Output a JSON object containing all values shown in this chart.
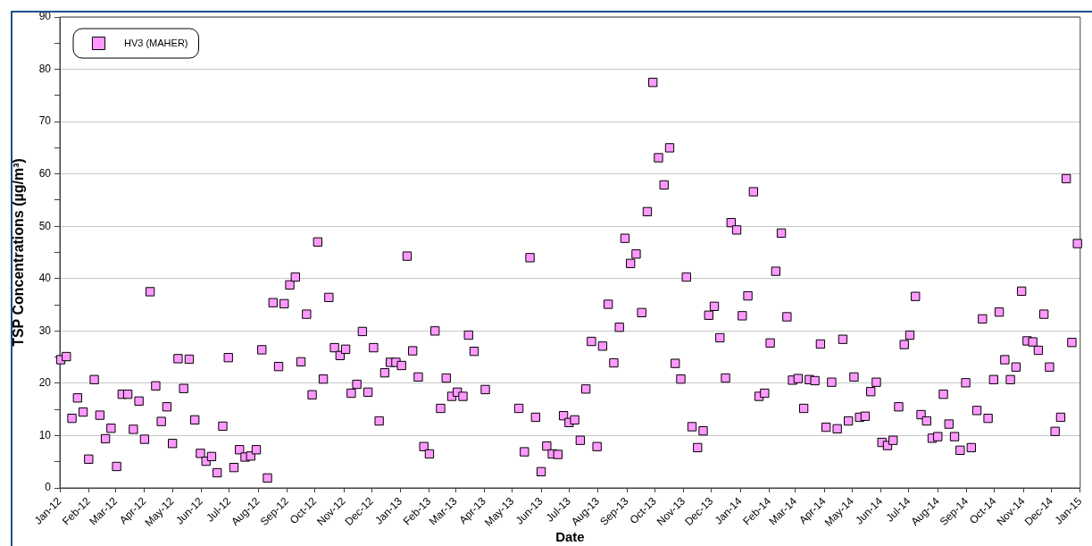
{
  "chart_data": {
    "type": "scatter",
    "xlabel": "Date",
    "ylabel": "TSP Concentrations (µg/m³)",
    "x": [
      "2012-01-02",
      "2012-01-08",
      "2012-01-14",
      "2012-01-20",
      "2012-01-26",
      "2012-02-01",
      "2012-02-07",
      "2012-02-13",
      "2012-02-19",
      "2012-02-25",
      "2012-03-02",
      "2012-03-08",
      "2012-03-14",
      "2012-03-20",
      "2012-03-26",
      "2012-04-01",
      "2012-04-07",
      "2012-04-13",
      "2012-04-19",
      "2012-04-25",
      "2012-05-01",
      "2012-05-07",
      "2012-05-13",
      "2012-05-19",
      "2012-05-25",
      "2012-05-31",
      "2012-06-06",
      "2012-06-12",
      "2012-06-18",
      "2012-06-24",
      "2012-06-30",
      "2012-07-06",
      "2012-07-12",
      "2012-07-18",
      "2012-07-24",
      "2012-07-30",
      "2012-08-05",
      "2012-08-11",
      "2012-08-17",
      "2012-08-23",
      "2012-08-29",
      "2012-09-04",
      "2012-09-10",
      "2012-09-16",
      "2012-09-22",
      "2012-09-28",
      "2012-10-04",
      "2012-10-10",
      "2012-10-16",
      "2012-10-22",
      "2012-10-28",
      "2012-11-03",
      "2012-11-09",
      "2012-11-15",
      "2012-11-21",
      "2012-11-27",
      "2012-12-03",
      "2012-12-09",
      "2012-12-15",
      "2012-12-21",
      "2012-12-27",
      "2013-01-02",
      "2013-01-08",
      "2013-01-14",
      "2013-01-20",
      "2013-01-26",
      "2013-02-01",
      "2013-02-07",
      "2013-02-13",
      "2013-02-19",
      "2013-02-25",
      "2013-03-03",
      "2013-03-09",
      "2013-03-15",
      "2013-03-21",
      "2013-04-02",
      "2013-05-08",
      "2013-05-14",
      "2013-05-20",
      "2013-05-26",
      "2013-06-01",
      "2013-06-07",
      "2013-06-13",
      "2013-06-19",
      "2013-06-25",
      "2013-07-01",
      "2013-07-07",
      "2013-07-13",
      "2013-07-19",
      "2013-07-25",
      "2013-07-31",
      "2013-08-06",
      "2013-08-12",
      "2013-08-18",
      "2013-08-24",
      "2013-08-30",
      "2013-09-05",
      "2013-09-11",
      "2013-09-17",
      "2013-09-23",
      "2013-09-29",
      "2013-10-05",
      "2013-10-11",
      "2013-10-17",
      "2013-10-23",
      "2013-10-29",
      "2013-11-04",
      "2013-11-10",
      "2013-11-16",
      "2013-11-22",
      "2013-11-28",
      "2013-12-04",
      "2013-12-10",
      "2013-12-16",
      "2013-12-22",
      "2013-12-28",
      "2014-01-03",
      "2014-01-09",
      "2014-01-15",
      "2014-01-21",
      "2014-01-27",
      "2014-02-02",
      "2014-02-08",
      "2014-02-14",
      "2014-02-20",
      "2014-02-26",
      "2014-03-04",
      "2014-03-10",
      "2014-03-16",
      "2014-03-22",
      "2014-03-28",
      "2014-04-03",
      "2014-04-09",
      "2014-04-15",
      "2014-04-21",
      "2014-04-27",
      "2014-05-03",
      "2014-05-09",
      "2014-05-15",
      "2014-05-21",
      "2014-05-27",
      "2014-06-02",
      "2014-06-08",
      "2014-06-14",
      "2014-06-20",
      "2014-06-26",
      "2014-07-02",
      "2014-07-08",
      "2014-07-14",
      "2014-07-20",
      "2014-07-26",
      "2014-08-01",
      "2014-08-07",
      "2014-08-13",
      "2014-08-19",
      "2014-08-25",
      "2014-08-31",
      "2014-09-06",
      "2014-09-12",
      "2014-09-18",
      "2014-09-24",
      "2014-09-30",
      "2014-10-06",
      "2014-10-12",
      "2014-10-18",
      "2014-10-24",
      "2014-10-30",
      "2014-11-05",
      "2014-11-11",
      "2014-11-17",
      "2014-11-23",
      "2014-11-29",
      "2014-12-05",
      "2014-12-11",
      "2014-12-17",
      "2014-12-23",
      "2014-12-29"
    ],
    "series": [
      {
        "name": "HV3 (MAHER)",
        "color": "#ff99ff",
        "values": [
          24.5,
          25.1,
          13.3,
          17.2,
          14.5,
          5.5,
          20.7,
          13.9,
          9.4,
          11.4,
          4.1,
          17.9,
          17.9,
          11.2,
          16.6,
          9.3,
          37.5,
          19.5,
          12.7,
          15.5,
          8.5,
          24.7,
          19.0,
          24.6,
          13.0,
          6.6,
          5.1,
          6.0,
          2.9,
          11.8,
          24.9,
          3.9,
          7.3,
          5.9,
          6.1,
          7.3,
          26.4,
          1.9,
          35.4,
          23.2,
          35.2,
          38.8,
          40.3,
          24.1,
          33.2,
          17.8,
          47.0,
          20.8,
          36.4,
          26.8,
          25.3,
          26.5,
          18.1,
          19.8,
          29.9,
          18.3,
          26.8,
          12.8,
          22.0,
          24.0,
          24.0,
          23.4,
          44.3,
          26.2,
          21.2,
          7.9,
          6.5,
          30.0,
          15.2,
          21.0,
          17.5,
          18.3,
          17.5,
          29.2,
          26.1,
          18.8,
          15.2,
          6.9,
          44.0,
          13.5,
          3.1,
          8.0,
          6.5,
          6.4,
          13.8,
          12.5,
          13.0,
          9.1,
          18.9,
          28.0,
          7.9,
          27.1,
          35.1,
          23.9,
          30.7,
          47.7,
          42.9,
          44.7,
          33.5,
          52.8,
          77.5,
          63.1,
          57.9,
          65.0,
          23.8,
          20.8,
          40.3,
          11.7,
          7.7,
          10.9,
          33.0,
          34.7,
          28.7,
          21.0,
          50.7,
          49.3,
          32.9,
          36.7,
          56.6,
          17.5,
          18.1,
          27.7,
          41.4,
          48.7,
          32.7,
          20.6,
          20.9,
          15.2,
          20.7,
          20.5,
          27.5,
          11.6,
          20.2,
          11.3,
          28.4,
          12.8,
          21.2,
          13.5,
          13.7,
          18.4,
          20.2,
          8.7,
          8.1,
          9.1,
          15.5,
          27.4,
          29.2,
          36.6,
          14.0,
          12.8,
          9.5,
          9.8,
          17.9,
          12.2,
          9.8,
          7.2,
          20.1,
          7.7,
          14.8,
          32.3,
          13.3,
          20.7,
          33.6,
          24.5,
          20.7,
          23.1,
          37.6,
          28.1,
          27.9,
          26.3,
          33.2,
          23.1,
          10.8,
          13.5,
          59.1,
          27.8,
          46.7
        ]
      }
    ],
    "xlim": [
      "2012-01-01",
      "2015-01-01"
    ],
    "xticks": [
      {
        "value": "2012-01",
        "label": "Jan-12"
      },
      {
        "value": "2012-02",
        "label": "Feb-12"
      },
      {
        "value": "2012-03",
        "label": "Mar-12"
      },
      {
        "value": "2012-04",
        "label": "Apr-12"
      },
      {
        "value": "2012-05",
        "label": "May-12"
      },
      {
        "value": "2012-06",
        "label": "Jun-12"
      },
      {
        "value": "2012-07",
        "label": "Jul-12"
      },
      {
        "value": "2012-08",
        "label": "Aug-12"
      },
      {
        "value": "2012-09",
        "label": "Sep-12"
      },
      {
        "value": "2012-10",
        "label": "Oct-12"
      },
      {
        "value": "2012-11",
        "label": "Nov-12"
      },
      {
        "value": "2012-12",
        "label": "Dec-12"
      },
      {
        "value": "2013-01",
        "label": "Jan-13"
      },
      {
        "value": "2013-02",
        "label": "Feb-13"
      },
      {
        "value": "2013-03",
        "label": "Mar-13"
      },
      {
        "value": "2013-04",
        "label": "Apr-13"
      },
      {
        "value": "2013-05",
        "label": "May-13"
      },
      {
        "value": "2013-06",
        "label": "Jun-13"
      },
      {
        "value": "2013-07",
        "label": "Jul-13"
      },
      {
        "value": "2013-08",
        "label": "Aug-13"
      },
      {
        "value": "2013-09",
        "label": "Sep-13"
      },
      {
        "value": "2013-10",
        "label": "Oct-13"
      },
      {
        "value": "2013-11",
        "label": "Nov-13"
      },
      {
        "value": "2013-12",
        "label": "Dec-13"
      },
      {
        "value": "2014-01",
        "label": "Jan-14"
      },
      {
        "value": "2014-02",
        "label": "Feb-14"
      },
      {
        "value": "2014-03",
        "label": "Mar-14"
      },
      {
        "value": "2014-04",
        "label": "Apr-14"
      },
      {
        "value": "2014-05",
        "label": "May-14"
      },
      {
        "value": "2014-06",
        "label": "Jun-14"
      },
      {
        "value": "2014-07",
        "label": "Jul-14"
      },
      {
        "value": "2014-08",
        "label": "Aug-14"
      },
      {
        "value": "2014-09",
        "label": "Sep-14"
      },
      {
        "value": "2014-10",
        "label": "Oct-14"
      },
      {
        "value": "2014-11",
        "label": "Nov-14"
      },
      {
        "value": "2014-12",
        "label": "Dec-14"
      },
      {
        "value": "2015-01",
        "label": "Jan-15"
      }
    ],
    "ylim": [
      0,
      90
    ],
    "yticks": [
      0,
      {
        "value": 5,
        "label": null
      },
      10,
      {
        "value": 15,
        "label": null
      },
      20,
      {
        "value": 25,
        "label": null
      },
      30,
      {
        "value": 35,
        "label": null
      },
      40,
      {
        "value": 45,
        "label": null
      },
      50,
      {
        "value": 55,
        "label": null
      },
      60,
      {
        "value": 65,
        "label": null
      },
      70,
      {
        "value": 75,
        "label": null
      },
      80,
      {
        "value": 85,
        "label": null
      },
      90
    ],
    "grid": "y",
    "legend": "top left",
    "marker": "square"
  }
}
